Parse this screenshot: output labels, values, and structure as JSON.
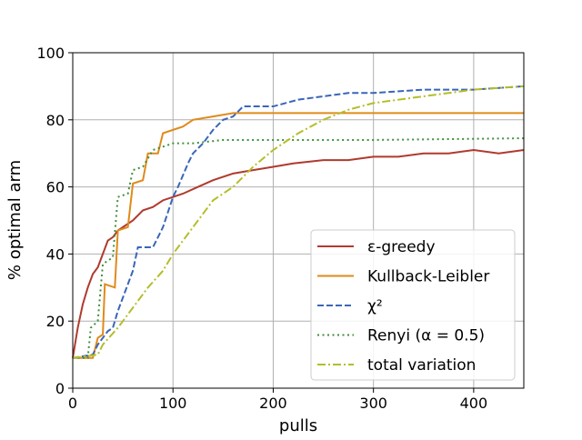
{
  "chart_data": {
    "type": "line",
    "title": "",
    "xlabel": "pulls",
    "ylabel": "% optimal arm",
    "xlim": [
      0,
      450
    ],
    "ylim": [
      0,
      100
    ],
    "xticks": [
      "0",
      "100",
      "200",
      "300",
      "400"
    ],
    "yticks": [
      "0",
      "20",
      "40",
      "60",
      "80",
      "100"
    ],
    "grid": true,
    "legend_position": "bottom-right",
    "series": [
      {
        "name": "ε-greedy",
        "color": "#b03a2e",
        "style": "solid",
        "x": [
          0,
          5,
          10,
          15,
          20,
          25,
          30,
          35,
          40,
          45,
          50,
          60,
          70,
          80,
          90,
          100,
          110,
          125,
          140,
          160,
          180,
          200,
          220,
          250,
          275,
          300,
          325,
          350,
          375,
          400,
          425,
          450
        ],
        "y": [
          9,
          18,
          25,
          30,
          34,
          36,
          40,
          44,
          45,
          47,
          48,
          50,
          53,
          54,
          56,
          57,
          58,
          60,
          62,
          64,
          65,
          66,
          67,
          68,
          68,
          69,
          69,
          70,
          70,
          71,
          70,
          71
        ]
      },
      {
        "name": "Kullback-Leibler",
        "color": "#e08a1a",
        "style": "solid",
        "x": [
          0,
          20,
          25,
          30,
          32,
          42,
          45,
          55,
          60,
          70,
          75,
          85,
          90,
          100,
          110,
          120,
          140,
          160,
          200,
          250,
          450
        ],
        "y": [
          9,
          9,
          15,
          16,
          31,
          30,
          47,
          48,
          61,
          62,
          70,
          70,
          76,
          77,
          78,
          80,
          81,
          82,
          82,
          82,
          82
        ]
      },
      {
        "name": "χ²",
        "color": "#3a66b8",
        "style": "dashed",
        "x": [
          0,
          20,
          25,
          35,
          40,
          45,
          50,
          60,
          65,
          80,
          90,
          100,
          105,
          115,
          120,
          130,
          140,
          150,
          160,
          170,
          180,
          200,
          225,
          250,
          275,
          300,
          350,
          400,
          450
        ],
        "y": [
          9,
          10,
          13,
          17,
          18,
          23,
          27,
          35,
          42,
          42,
          48,
          57,
          60,
          67,
          70,
          73,
          77,
          80,
          81,
          84,
          84,
          84,
          86,
          87,
          88,
          88,
          89,
          89,
          90
        ]
      },
      {
        "name": "Renyi (α = 0.5)",
        "color": "#3f8f3a",
        "style": "dotted",
        "x": [
          0,
          15,
          18,
          25,
          30,
          40,
          45,
          55,
          60,
          70,
          80,
          100,
          120,
          150,
          200,
          300,
          450
        ],
        "y": [
          9,
          9,
          18,
          20,
          37,
          39,
          57,
          58,
          65,
          66,
          71,
          73,
          73,
          74,
          74,
          74,
          74.5
        ]
      },
      {
        "name": "total variation",
        "color": "#b5bd2a",
        "style": "dashdot",
        "x": [
          0,
          25,
          30,
          45,
          60,
          75,
          90,
          100,
          110,
          125,
          140,
          160,
          180,
          200,
          225,
          250,
          275,
          300,
          350,
          400,
          450
        ],
        "y": [
          9,
          10,
          13,
          18,
          24,
          30,
          35,
          40,
          44,
          50,
          56,
          60,
          66,
          71,
          76,
          80,
          83,
          85,
          87,
          89,
          90
        ]
      }
    ]
  }
}
